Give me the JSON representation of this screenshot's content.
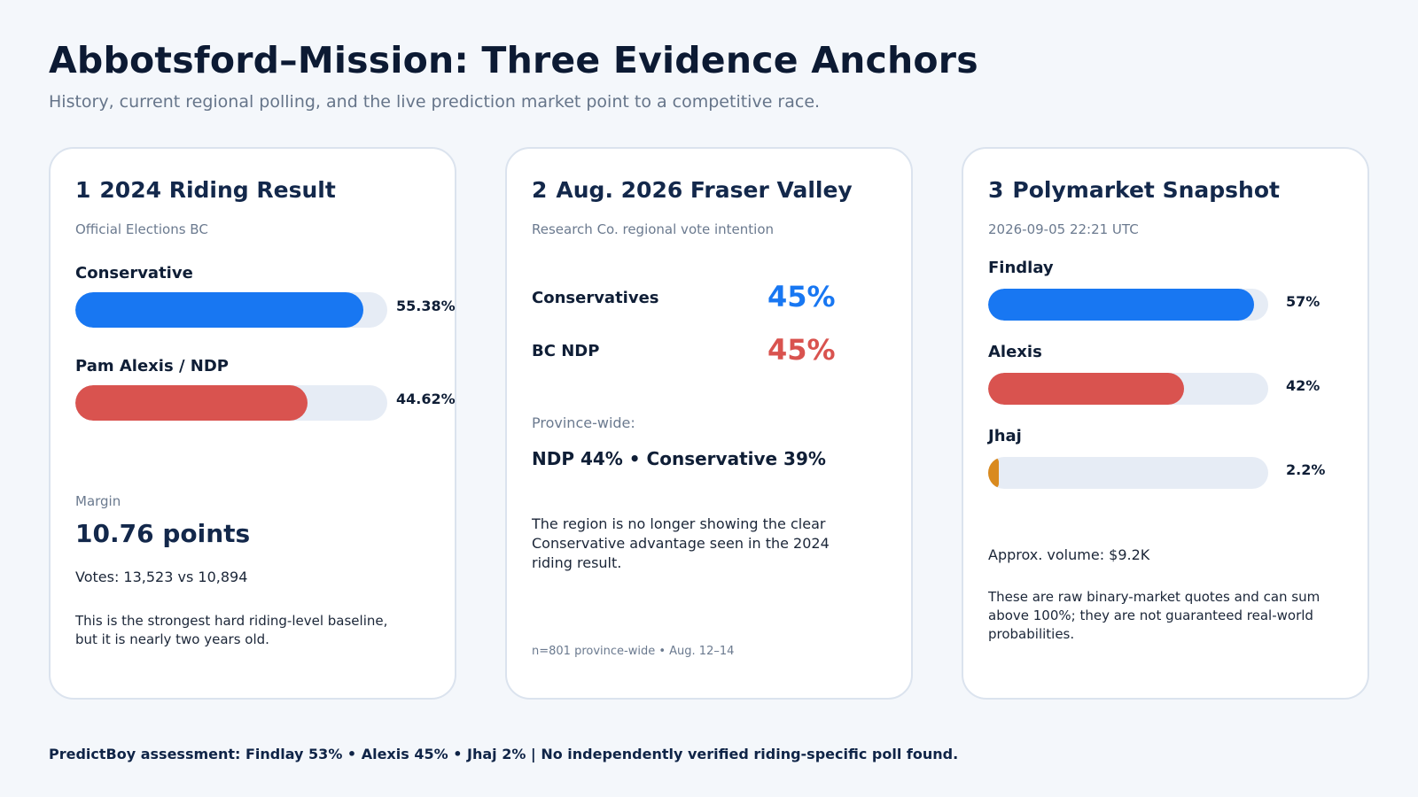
{
  "header": {
    "title": "Abbotsford–Mission: Three Evidence Anchors",
    "subtitle": "History, current regional polling, and the live prediction market point to a competitive race."
  },
  "colors": {
    "conservative": "#1877f2",
    "ndp": "#d9534f",
    "jhaj": "#d98a1f",
    "track": "#e6ecf5"
  },
  "card1": {
    "number": "1",
    "title": "2024 Riding Result",
    "source": "Official Elections BC",
    "bars": [
      {
        "label": "Conservative",
        "value_text": "55.38%",
        "value": 55.38
      },
      {
        "label": "Pam Alexis / NDP",
        "value_text": "44.62%",
        "value": 44.62
      }
    ],
    "margin_label": "Margin",
    "margin_value": "10.76 points",
    "votes": "Votes: 13,523 vs 10,894",
    "note": "This is the strongest hard riding-level baseline, but it is nearly two years old."
  },
  "card2": {
    "number": "2",
    "title": "Aug. 2026 Fraser Valley",
    "source": "Research Co. regional vote intention",
    "rows": [
      {
        "label": "Conservatives",
        "value": "45%"
      },
      {
        "label": "BC NDP",
        "value": "45%"
      }
    ],
    "province_label": "Province-wide:",
    "province_value": "NDP 44% • Conservative 39%",
    "note": "The region is no longer showing the clear Conservative advantage seen in the 2024 riding result.",
    "footnote": "n=801 province-wide • Aug. 12–14"
  },
  "card3": {
    "number": "3",
    "title": "Polymarket Snapshot",
    "timestamp": "2026-09-05 22:21 UTC",
    "bars": [
      {
        "label": "Findlay",
        "value_text": "57%",
        "value": 57
      },
      {
        "label": "Alexis",
        "value_text": "42%",
        "value": 42
      },
      {
        "label": "Jhaj",
        "value_text": "2.2%",
        "value": 2.2
      }
    ],
    "volume": "Approx. volume: $9.2K",
    "note": "These are raw binary-market quotes and can sum above 100%; they are not guaranteed real-world probabilities."
  },
  "footer": {
    "text": "PredictBoy assessment: Findlay 53% • Alexis 45% • Jhaj 2%  |  No independently verified riding-specific poll found."
  }
}
